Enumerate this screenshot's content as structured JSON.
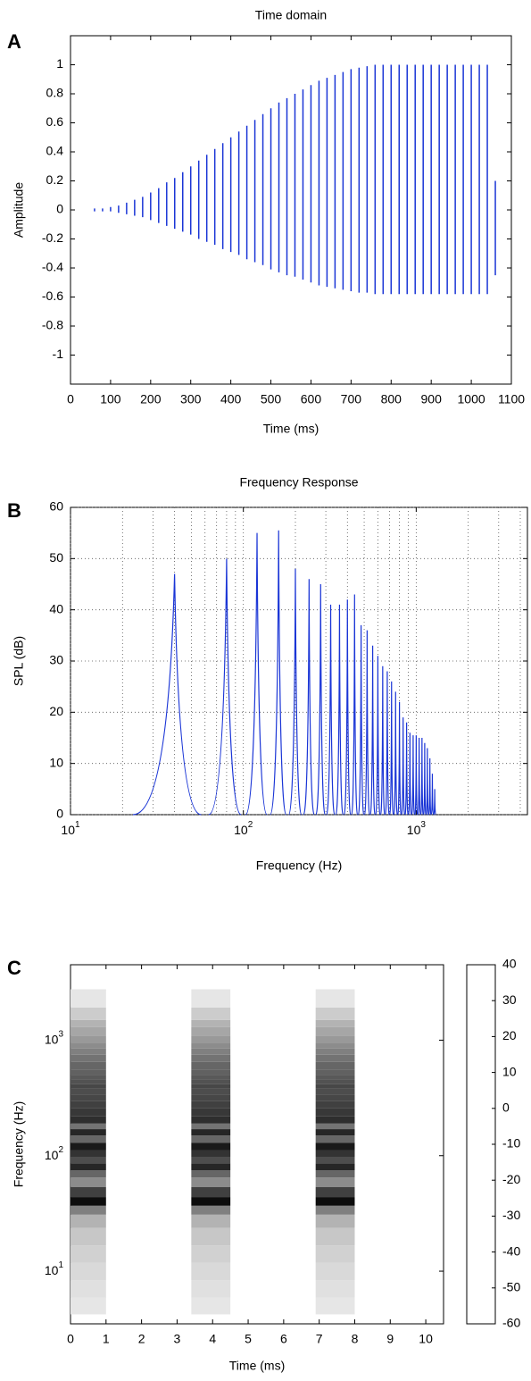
{
  "chart_data": [
    {
      "type": "pulse",
      "panel": "A",
      "title": "Time domain",
      "xlabel": "Time (ms)",
      "ylabel": "Amplitude",
      "xlim": [
        0,
        1100
      ],
      "xticks": [
        0,
        100,
        200,
        300,
        400,
        500,
        600,
        700,
        800,
        900,
        1000,
        1100
      ],
      "ylim": [
        -1.2,
        1.2
      ],
      "yticks": [
        -1,
        -0.8,
        -0.6,
        -0.4,
        -0.2,
        0,
        0.2,
        0.4,
        0.6,
        0.8,
        1
      ],
      "x": [
        60,
        80,
        100,
        120,
        140,
        160,
        180,
        200,
        220,
        240,
        260,
        280,
        300,
        320,
        340,
        360,
        380,
        400,
        420,
        440,
        460,
        480,
        500,
        520,
        540,
        560,
        580,
        600,
        620,
        640,
        660,
        680,
        700,
        720,
        740,
        760,
        780,
        800,
        820,
        840,
        860,
        880,
        900,
        920,
        940,
        960,
        980,
        1000,
        1020,
        1040,
        1060
      ],
      "series": [
        {
          "color": "#1a35d6",
          "values": [
            0.01,
            0.01,
            0.02,
            0.03,
            0.05,
            0.07,
            0.09,
            0.12,
            0.15,
            0.19,
            0.22,
            0.26,
            0.3,
            0.34,
            0.38,
            0.42,
            0.46,
            0.5,
            0.54,
            0.58,
            0.62,
            0.66,
            0.7,
            0.74,
            0.77,
            0.8,
            0.83,
            0.86,
            0.89,
            0.91,
            0.93,
            0.95,
            0.97,
            0.98,
            0.99,
            1,
            1,
            1,
            1,
            1,
            1,
            1,
            1,
            1,
            1,
            1,
            1,
            1,
            1,
            1,
            0.2
          ]
        },
        {
          "color": "#1a35d6",
          "values": [
            -0.01,
            -0.01,
            -0.01,
            -0.02,
            -0.03,
            -0.04,
            -0.05,
            -0.07,
            -0.09,
            -0.11,
            -0.13,
            -0.15,
            -0.17,
            -0.2,
            -0.22,
            -0.24,
            -0.27,
            -0.29,
            -0.31,
            -0.34,
            -0.36,
            -0.38,
            -0.41,
            -0.43,
            -0.45,
            -0.46,
            -0.48,
            -0.5,
            -0.52,
            -0.53,
            -0.54,
            -0.55,
            -0.56,
            -0.57,
            -0.57,
            -0.58,
            -0.58,
            -0.58,
            -0.58,
            -0.58,
            -0.58,
            -0.58,
            -0.58,
            -0.58,
            -0.58,
            -0.58,
            -0.58,
            -0.58,
            -0.58,
            -0.58,
            -0.45
          ]
        }
      ]
    },
    {
      "type": "line",
      "panel": "B",
      "title": "Frequency Response",
      "xlabel": "Frequency (Hz)",
      "ylabel": "SPL (dB)",
      "log_x": true,
      "xlim": [
        10,
        4400
      ],
      "xticks": [
        {
          "value": 10,
          "label": "10",
          "sup": "1"
        },
        {
          "value": 100,
          "label": "10",
          "sup": "2"
        },
        {
          "value": 1000,
          "label": "10",
          "sup": "3"
        }
      ],
      "xgrid": [
        20,
        30,
        40,
        50,
        60,
        70,
        80,
        90,
        200,
        300,
        400,
        500,
        600,
        700,
        800,
        900,
        2000,
        3000,
        4000
      ],
      "ylim": [
        0,
        60
      ],
      "yticks": [
        0,
        10,
        20,
        30,
        40,
        50,
        60
      ],
      "grid": true,
      "color": "#1a35d6",
      "x": [
        40,
        80,
        120,
        160,
        200,
        240,
        280,
        320,
        360,
        400,
        440,
        480,
        520,
        560,
        600,
        640,
        680,
        720,
        760,
        800,
        840,
        880,
        920,
        960,
        1000,
        1040,
        1080,
        1120,
        1160,
        1200,
        1240,
        1280
      ],
      "values": [
        47,
        50,
        55,
        55.5,
        48,
        46,
        45,
        41,
        41,
        42,
        43,
        37,
        36,
        33,
        31,
        29,
        28,
        26,
        24,
        22,
        19,
        18,
        16,
        15.5,
        15.5,
        15,
        15,
        14,
        13,
        11,
        8,
        5
      ]
    },
    {
      "type": "heatmap",
      "panel": "C",
      "xlabel": "Time (ms)",
      "ylabel": "Frequency (Hz)",
      "xlim": [
        0,
        10.5
      ],
      "xticks": [
        0,
        1,
        2,
        3,
        4,
        5,
        6,
        7,
        8,
        9,
        10
      ],
      "log_y": true,
      "ylim": [
        3.5,
        4500
      ],
      "yticks": [
        {
          "value": 10,
          "label": "10",
          "sup": "1"
        },
        {
          "value": 100,
          "label": "10",
          "sup": "2"
        },
        {
          "value": 1000,
          "label": "10",
          "sup": "3"
        }
      ],
      "bursts": [
        [
          0,
          1
        ],
        [
          3.4,
          4.5
        ],
        [
          6.9,
          8
        ]
      ],
      "y": [
        5,
        7,
        10,
        14,
        20,
        28,
        34,
        40,
        48,
        60,
        70,
        80,
        92,
        104,
        120,
        140,
        160,
        180,
        200,
        240,
        280,
        320,
        360,
        400,
        440,
        480,
        520,
        600,
        700,
        800,
        900,
        1000,
        1200,
        1400,
        1600,
        2300
      ],
      "z": [
        -50,
        -48,
        -45,
        -42,
        -38,
        -30,
        -10,
        35,
        15,
        -15,
        0,
        25,
        10,
        20,
        30,
        0,
        25,
        -5,
        22,
        18,
        15,
        12,
        10,
        12,
        8,
        5,
        2,
        0,
        -5,
        -10,
        -15,
        -20,
        -25,
        -30,
        -40,
        -50
      ],
      "clim": [
        -60,
        40
      ],
      "cticks": [
        40,
        30,
        20,
        10,
        0,
        -10,
        -20,
        -30,
        -40,
        -50,
        -60
      ]
    }
  ]
}
